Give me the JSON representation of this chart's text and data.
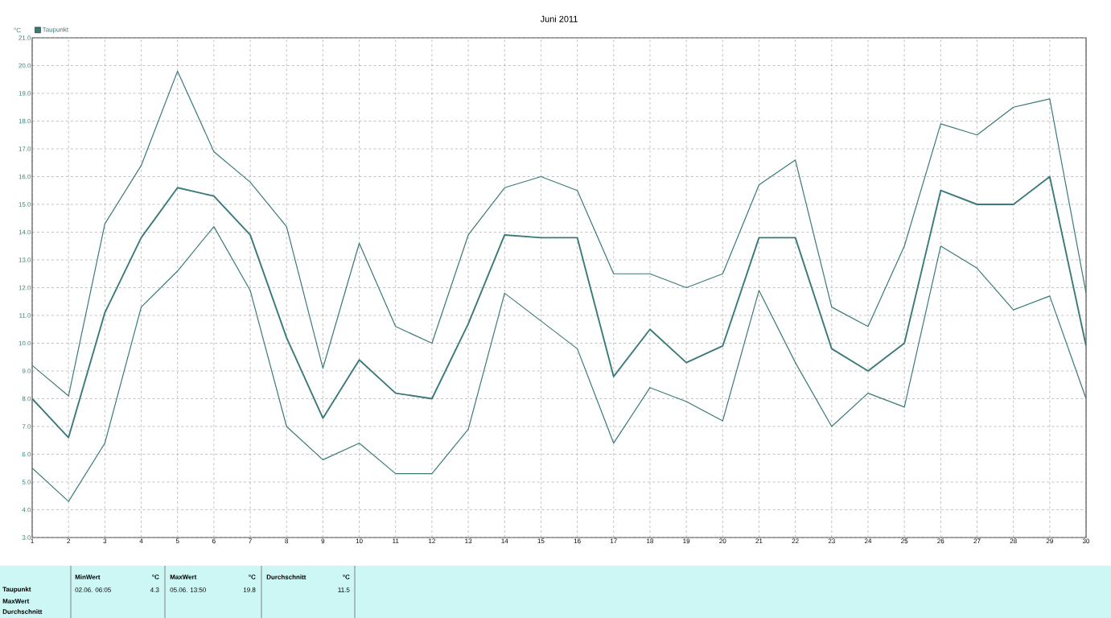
{
  "chart_data": {
    "type": "line",
    "title": "Juni 2011",
    "ylabel": "°C",
    "x": [
      1,
      2,
      3,
      4,
      5,
      6,
      7,
      8,
      9,
      10,
      11,
      12,
      13,
      14,
      15,
      16,
      17,
      18,
      19,
      20,
      21,
      22,
      23,
      24,
      25,
      26,
      27,
      28,
      29,
      30
    ],
    "series": [
      {
        "color": "#3a7a78",
        "values": [
          9.2,
          8.1,
          14.3,
          16.4,
          19.8,
          16.9,
          15.8,
          14.2,
          9.1,
          13.6,
          10.6,
          10.0,
          13.9,
          15.6,
          16.0,
          15.5,
          12.5,
          12.5,
          12.0,
          12.5,
          15.7,
          16.6,
          11.3,
          10.6,
          13.5,
          17.9,
          17.5,
          18.5,
          18.8,
          11.8
        ]
      },
      {
        "name": "Taupunkt",
        "color": "#3a7a78",
        "values": [
          8.0,
          6.6,
          11.1,
          13.8,
          15.6,
          15.3,
          13.9,
          10.2,
          7.3,
          9.4,
          8.2,
          8.0,
          10.7,
          13.9,
          13.8,
          13.8,
          8.8,
          10.5,
          9.3,
          9.9,
          13.8,
          13.8,
          9.8,
          9.0,
          10.0,
          15.5,
          15.0,
          15.0,
          16.0,
          9.9
        ]
      },
      {
        "color": "#3a7a78",
        "values": [
          5.5,
          4.3,
          6.4,
          11.3,
          12.6,
          14.2,
          11.9,
          7.0,
          5.8,
          6.4,
          5.3,
          5.3,
          6.9,
          11.8,
          10.8,
          9.8,
          6.4,
          8.4,
          7.9,
          7.2,
          11.9,
          9.3,
          7.0,
          8.2,
          7.7,
          13.5,
          12.7,
          11.2,
          11.7,
          8.0
        ]
      }
    ],
    "xlim": [
      1,
      30
    ],
    "xticks": [
      1,
      2,
      3,
      4,
      5,
      6,
      7,
      8,
      9,
      10,
      11,
      12,
      13,
      14,
      15,
      16,
      17,
      18,
      19,
      20,
      21,
      22,
      23,
      24,
      25,
      26,
      27,
      28,
      29,
      30
    ],
    "ylim": [
      3,
      21
    ],
    "yticks": [
      {
        "value": 3,
        "label": "3.0"
      },
      {
        "value": 4,
        "label": "4.0"
      },
      {
        "value": 5,
        "label": "5.0"
      },
      {
        "value": 6,
        "label": "6.0"
      },
      {
        "value": 7,
        "label": "7.0"
      },
      {
        "value": 8,
        "label": "8.0"
      },
      {
        "value": 9,
        "label": "9.0"
      },
      {
        "value": 10,
        "label": "10.0"
      },
      {
        "value": 11,
        "label": "11.0"
      },
      {
        "value": 12,
        "label": "12.0"
      },
      {
        "value": 13,
        "label": "13.0"
      },
      {
        "value": 14,
        "label": "14.0"
      },
      {
        "value": 15,
        "label": "15.0"
      },
      {
        "value": 16,
        "label": "16.0"
      },
      {
        "value": 17,
        "label": "17.0"
      },
      {
        "value": 18,
        "label": "18.0"
      },
      {
        "value": 19,
        "label": "19.0"
      },
      {
        "value": 20,
        "label": "20.0"
      },
      {
        "value": 21,
        "label": "21.0"
      }
    ],
    "grid": true,
    "legend": "top left",
    "marker": "none",
    "line_style": "solid",
    "annotations": [
      "MinWert",
      "°C",
      "MaxWert",
      "°C",
      "Durchschnitt",
      "°C",
      "Taupunkt",
      "02.06.  06:05",
      "4.3",
      "05.06.  13:50",
      "19.8",
      "11.5",
      "MaxWert",
      "Durchschnitt"
    ]
  }
}
